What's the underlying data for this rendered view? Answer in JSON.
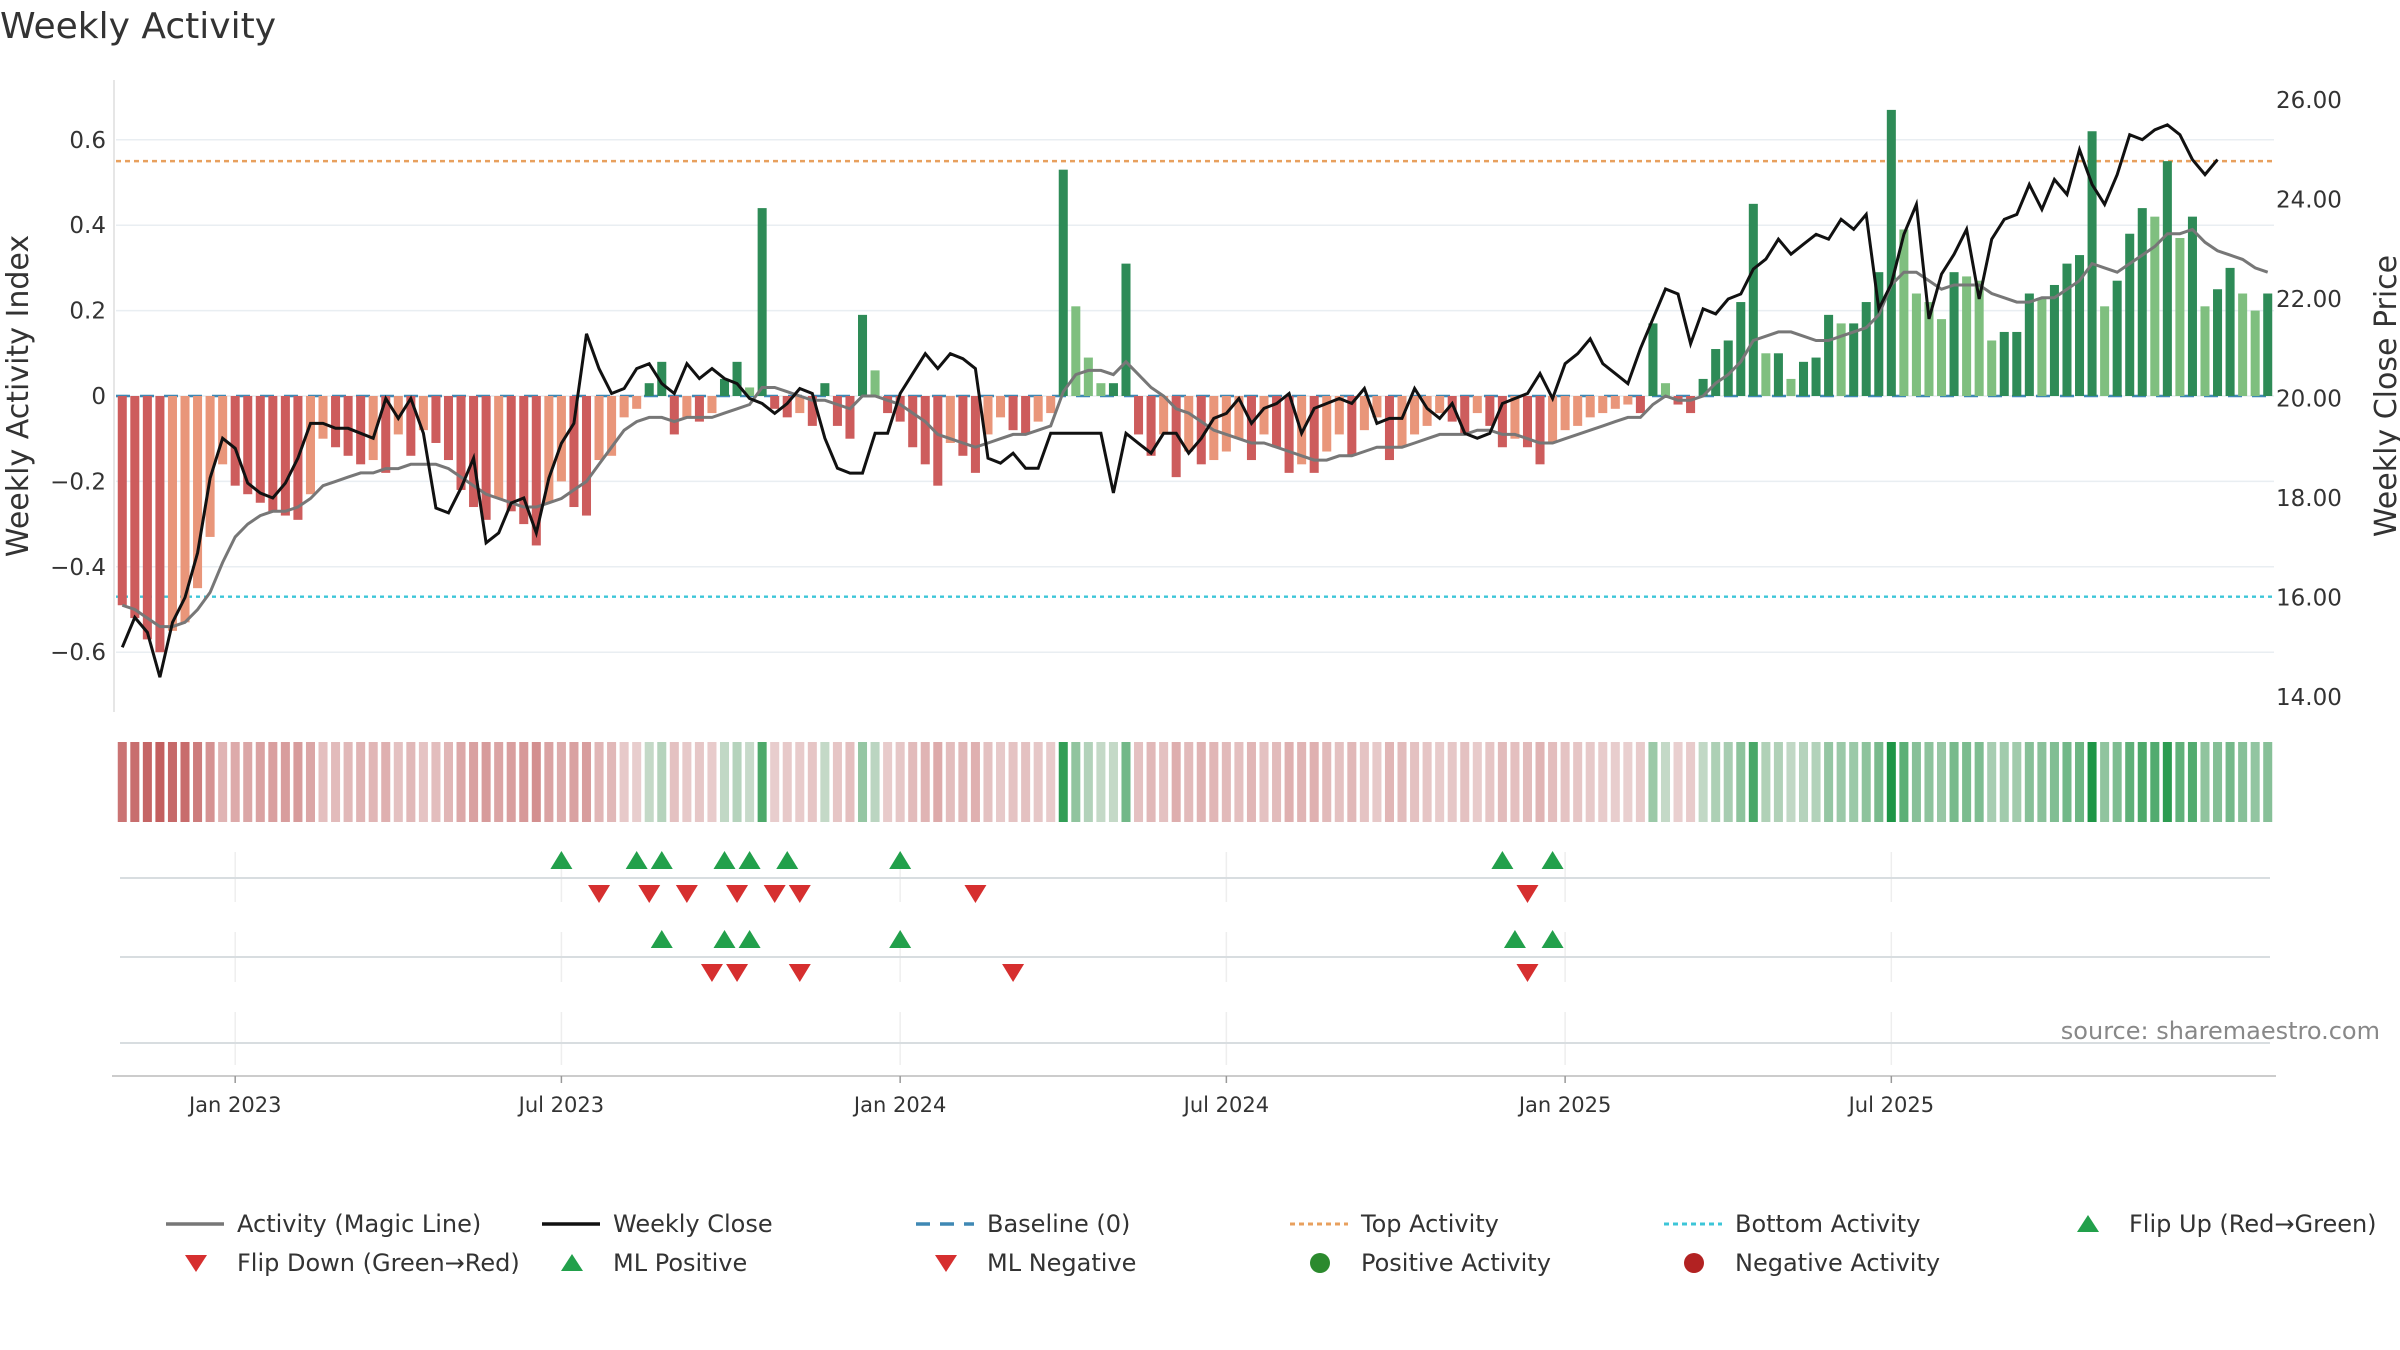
{
  "chart_data": {
    "type": "bar+line",
    "title": "Weekly Activity",
    "ylabel_left": "Weekly Activity Index",
    "ylabel_right": "Weekly Close Price",
    "source": "source: sharemaestro.com",
    "x_tick_labels": [
      "Jan 2023",
      "Jul 2023",
      "Jan 2024",
      "Jul 2024",
      "Jan 2025",
      "Jul 2025"
    ],
    "x_tick_weeks": [
      9,
      35,
      62,
      88,
      115,
      141
    ],
    "y_left_ticks": [
      -0.6,
      -0.4,
      -0.2,
      0,
      0.2,
      0.4,
      0.6
    ],
    "y_left_tick_labels": [
      "−0.6",
      "−0.4",
      "−0.2",
      "0",
      "0.2",
      "0.4",
      "0.6"
    ],
    "y_left_range": [
      -0.74,
      0.74
    ],
    "y_right_ticks": [
      14,
      16,
      18,
      20,
      22,
      24,
      26
    ],
    "y_right_tick_labels": [
      "14.00",
      "16.00",
      "18.00",
      "20.00",
      "22.00",
      "24.00",
      "26.00"
    ],
    "y_right_range": [
      13.7,
      26.4
    ],
    "top_activity": 0.55,
    "bottom_activity": -0.47,
    "baseline": 0,
    "activity": [
      -0.49,
      -0.52,
      -0.57,
      -0.6,
      -0.55,
      -0.53,
      -0.45,
      -0.33,
      -0.16,
      -0.21,
      -0.23,
      -0.25,
      -0.27,
      -0.28,
      -0.29,
      -0.23,
      -0.1,
      -0.12,
      -0.14,
      -0.16,
      -0.15,
      -0.18,
      -0.09,
      -0.14,
      -0.08,
      -0.11,
      -0.15,
      -0.22,
      -0.26,
      -0.29,
      -0.24,
      -0.27,
      -0.3,
      -0.35,
      -0.25,
      -0.2,
      -0.26,
      -0.28,
      -0.15,
      -0.14,
      -0.05,
      -0.03,
      0.03,
      0.08,
      -0.09,
      -0.05,
      -0.06,
      -0.04,
      0.04,
      0.08,
      0.02,
      0.44,
      -0.03,
      -0.05,
      -0.04,
      -0.07,
      0.03,
      -0.07,
      -0.1,
      0.19,
      0.06,
      -0.04,
      -0.06,
      -0.12,
      -0.16,
      -0.21,
      -0.11,
      -0.14,
      -0.18,
      -0.09,
      -0.05,
      -0.08,
      -0.09,
      -0.06,
      -0.04,
      0.53,
      0.21,
      0.09,
      0.03,
      0.03,
      0.31,
      -0.09,
      -0.14,
      -0.09,
      -0.19,
      -0.13,
      -0.16,
      -0.15,
      -0.13,
      -0.1,
      -0.15,
      -0.09,
      -0.12,
      -0.18,
      -0.16,
      -0.18,
      -0.13,
      -0.09,
      -0.14,
      -0.08,
      -0.05,
      -0.15,
      -0.12,
      -0.09,
      -0.07,
      -0.04,
      -0.06,
      -0.09,
      -0.04,
      -0.07,
      -0.12,
      -0.1,
      -0.12,
      -0.16,
      -0.11,
      -0.08,
      -0.07,
      -0.05,
      -0.04,
      -0.03,
      -0.02,
      -0.04,
      0.17,
      0.03,
      -0.02,
      -0.04,
      0.04,
      0.11,
      0.13,
      0.22,
      0.45,
      0.1,
      0.1,
      0.04,
      0.08,
      0.09,
      0.19,
      0.17,
      0.17,
      0.22,
      0.29,
      0.67,
      0.39,
      0.24,
      0.22,
      0.18,
      0.29,
      0.28,
      0.27,
      0.13,
      0.15,
      0.15,
      0.24,
      0.23,
      0.26,
      0.31,
      0.33,
      0.62,
      0.21,
      0.27,
      0.38,
      0.44,
      0.42,
      0.55,
      0.37,
      0.42,
      0.21,
      0.25,
      0.3,
      0.24,
      0.2,
      0.24
    ],
    "magic_line": [
      -0.49,
      -0.5,
      -0.52,
      -0.54,
      -0.54,
      -0.53,
      -0.5,
      -0.46,
      -0.39,
      -0.33,
      -0.3,
      -0.28,
      -0.27,
      -0.27,
      -0.26,
      -0.24,
      -0.21,
      -0.2,
      -0.19,
      -0.18,
      -0.18,
      -0.17,
      -0.17,
      -0.16,
      -0.16,
      -0.16,
      -0.17,
      -0.19,
      -0.21,
      -0.23,
      -0.24,
      -0.25,
      -0.26,
      -0.26,
      -0.25,
      -0.24,
      -0.22,
      -0.2,
      -0.16,
      -0.12,
      -0.08,
      -0.06,
      -0.05,
      -0.05,
      -0.06,
      -0.05,
      -0.05,
      -0.05,
      -0.04,
      -0.03,
      -0.02,
      0.02,
      0.02,
      0.01,
      0.0,
      -0.01,
      -0.01,
      -0.02,
      -0.03,
      0.0,
      0.0,
      -0.01,
      -0.02,
      -0.04,
      -0.06,
      -0.09,
      -0.1,
      -0.11,
      -0.12,
      -0.11,
      -0.1,
      -0.09,
      -0.09,
      -0.08,
      -0.07,
      0.01,
      0.05,
      0.06,
      0.06,
      0.05,
      0.08,
      0.05,
      0.02,
      0.0,
      -0.03,
      -0.04,
      -0.06,
      -0.08,
      -0.09,
      -0.1,
      -0.11,
      -0.11,
      -0.12,
      -0.13,
      -0.14,
      -0.15,
      -0.15,
      -0.14,
      -0.14,
      -0.13,
      -0.12,
      -0.12,
      -0.12,
      -0.11,
      -0.1,
      -0.09,
      -0.09,
      -0.09,
      -0.08,
      -0.08,
      -0.09,
      -0.09,
      -0.1,
      -0.11,
      -0.11,
      -0.1,
      -0.09,
      -0.08,
      -0.07,
      -0.06,
      -0.05,
      -0.05,
      -0.02,
      0.0,
      -0.01,
      -0.01,
      0.0,
      0.03,
      0.05,
      0.08,
      0.13,
      0.14,
      0.15,
      0.15,
      0.14,
      0.13,
      0.13,
      0.14,
      0.15,
      0.16,
      0.19,
      0.26,
      0.29,
      0.29,
      0.27,
      0.25,
      0.26,
      0.26,
      0.26,
      0.24,
      0.23,
      0.22,
      0.22,
      0.23,
      0.23,
      0.25,
      0.27,
      0.31,
      0.3,
      0.29,
      0.31,
      0.33,
      0.35,
      0.38,
      0.38,
      0.39,
      0.36,
      0.34,
      0.33,
      0.32,
      0.3,
      0.29
    ],
    "weekly_close": [
      15.0,
      15.6,
      15.3,
      14.4,
      15.5,
      16.0,
      16.9,
      18.4,
      19.2,
      19.0,
      18.3,
      18.1,
      18.0,
      18.3,
      18.8,
      19.5,
      19.5,
      19.4,
      19.4,
      19.3,
      19.2,
      20.0,
      19.6,
      20.0,
      19.3,
      17.8,
      17.7,
      18.2,
      18.8,
      17.1,
      17.3,
      17.9,
      18.0,
      17.3,
      18.4,
      19.1,
      19.5,
      21.3,
      20.6,
      20.1,
      20.2,
      20.6,
      20.7,
      20.3,
      20.1,
      20.7,
      20.4,
      20.6,
      20.4,
      20.3,
      20.0,
      19.9,
      19.7,
      19.9,
      20.2,
      20.1,
      19.2,
      18.6,
      18.5,
      18.5,
      19.3,
      19.3,
      20.1,
      20.5,
      20.9,
      20.6,
      20.9,
      20.8,
      20.6,
      18.8,
      18.7,
      18.9,
      18.6,
      18.6,
      19.3,
      19.3,
      19.3,
      19.3,
      19.3,
      18.1,
      19.3,
      19.1,
      18.9,
      19.3,
      19.3,
      18.9,
      19.2,
      19.6,
      19.7,
      20.0,
      19.5,
      19.8,
      19.9,
      20.1,
      19.3,
      19.8,
      19.9,
      20.0,
      19.9,
      20.2,
      19.5,
      19.6,
      19.6,
      20.2,
      19.8,
      19.6,
      19.9,
      19.3,
      19.2,
      19.3,
      19.9,
      20.0,
      20.1,
      20.5,
      20.0,
      20.7,
      20.9,
      21.2,
      20.7,
      20.5,
      20.3,
      21.0,
      21.6,
      22.2,
      22.1,
      21.1,
      21.8,
      21.7,
      22.0,
      22.1,
      22.6,
      22.8,
      23.2,
      22.9,
      23.1,
      23.3,
      23.2,
      23.6,
      23.4,
      23.7,
      21.8,
      22.3,
      23.3,
      23.9,
      21.6,
      22.5,
      22.9,
      23.4,
      22.0,
      23.2,
      23.6,
      23.7,
      24.3,
      23.8,
      24.4,
      24.1,
      25.0,
      24.3,
      23.9,
      24.5,
      25.3,
      25.2,
      25.4,
      25.5,
      25.3,
      24.8,
      24.5,
      24.8
    ],
    "heat_strip": "per-week color band mirroring activity sign and magnitude",
    "flip_up_weeks": [
      35,
      41,
      43,
      48,
      50,
      53,
      62,
      110,
      114
    ],
    "flip_down_weeks": [
      38,
      42,
      45,
      49,
      52,
      54,
      68,
      112
    ],
    "ml_positive_weeks": [
      43,
      48,
      50,
      62,
      111,
      114
    ],
    "ml_negative_weeks": [
      47,
      49,
      54,
      71,
      112
    ],
    "legend": [
      {
        "label": "Activity (Magic Line)",
        "marker": "line",
        "color": "#777777"
      },
      {
        "label": "Weekly Close",
        "marker": "line",
        "color": "#111111"
      },
      {
        "label": "Baseline (0)",
        "marker": "dash",
        "color": "#3f88b4"
      },
      {
        "label": "Top Activity",
        "marker": "dot",
        "color": "#e8a05e"
      },
      {
        "label": "Bottom Activity",
        "marker": "dot",
        "color": "#3cc6d8"
      },
      {
        "label": "Flip Up (Red→Green)",
        "marker": "triangle-up",
        "color": "#22a04b"
      },
      {
        "label": "Flip Down (Green→Red)",
        "marker": "triangle-down",
        "color": "#d62f2f"
      },
      {
        "label": "ML Positive",
        "marker": "triangle-up",
        "color": "#22a04b"
      },
      {
        "label": "ML Negative",
        "marker": "triangle-down",
        "color": "#d62f2f"
      },
      {
        "label": "Positive Activity",
        "marker": "circle",
        "color": "#2b8a2e"
      },
      {
        "label": "Negative Activity",
        "marker": "circle",
        "color": "#b22222"
      }
    ],
    "colors": {
      "bar_pos_strong": "#2e8b57",
      "bar_pos_weak": "#7fbf7f",
      "bar_neg_strong": "#cd5c5c",
      "bar_neg_weak": "#e9967a",
      "top_line": "#e8a05e",
      "bottom_line": "#3cc6d8",
      "baseline": "#3f88b4",
      "magic_line": "#777777",
      "close_line": "#111111",
      "up_marker": "#22a04b",
      "down_marker": "#d62f2f"
    }
  }
}
